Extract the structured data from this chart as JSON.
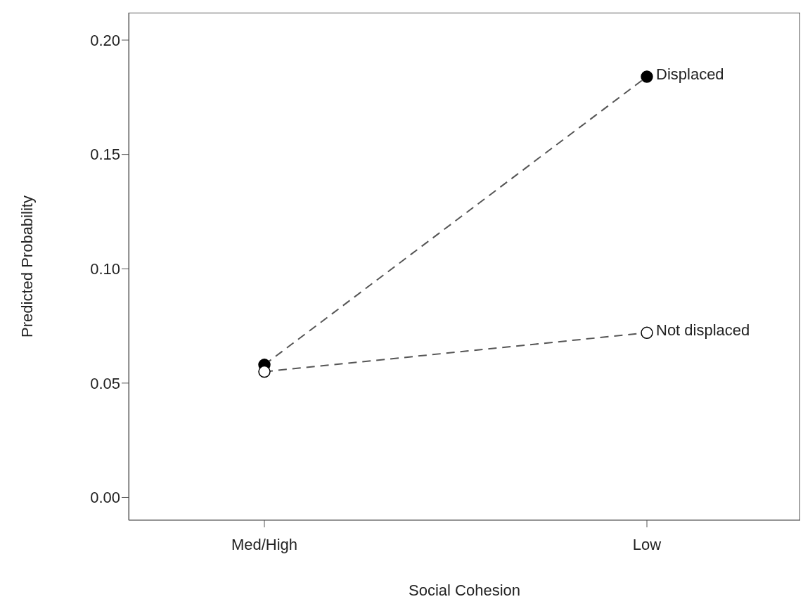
{
  "chart_data": {
    "type": "line",
    "xlabel": "Social Cohesion",
    "ylabel": "Predicted Probability",
    "categories": [
      "Med/High",
      "Low"
    ],
    "series": [
      {
        "name": "Displaced",
        "color": "#000000",
        "values": [
          0.058,
          0.184
        ]
      },
      {
        "name": "Not displaced",
        "color": "#ffffff",
        "values": [
          0.055,
          0.072
        ]
      }
    ],
    "ylim": [
      -0.01,
      0.212
    ],
    "yticks": [
      {
        "value": 0,
        "label": "0.00"
      },
      {
        "value": 0.05,
        "label": "0.05"
      },
      {
        "value": 0.1,
        "label": "0.10"
      },
      {
        "value": 0.15,
        "label": "0.15"
      },
      {
        "value": 0.2,
        "label": "0.20"
      }
    ],
    "grid": false,
    "legend": false,
    "marker": "circle",
    "line_style": "dashed"
  }
}
